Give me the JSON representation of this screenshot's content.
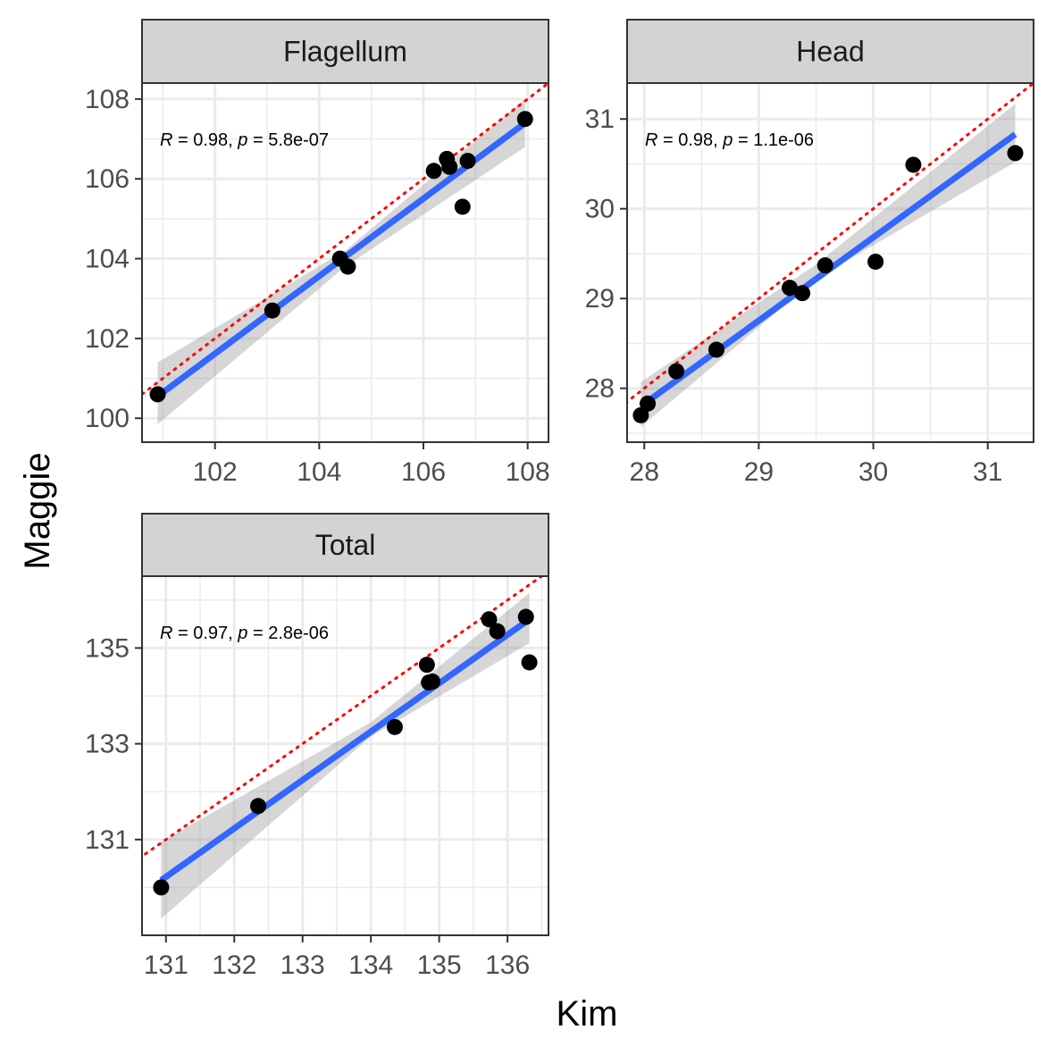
{
  "figure": {
    "xlabel": "Kim",
    "ylabel": "Maggie"
  },
  "colors": {
    "points": "#000000",
    "fit_line": "#3366FF",
    "ci_band": "#999999",
    "identity_line": "#FF0000",
    "strip_fill": "#D3D3D3",
    "grid": "#EBEBEB"
  },
  "chart_data": [
    {
      "type": "scatter",
      "title": "Flagellum",
      "xlabel": "Kim",
      "ylabel": "Maggie",
      "xlim": [
        100.6,
        108.4
      ],
      "ylim": [
        99.4,
        108.4
      ],
      "xticks": [
        102,
        104,
        106,
        108
      ],
      "yticks": [
        100,
        102,
        104,
        106,
        108
      ],
      "grid": true,
      "annotation": {
        "r_label": "R",
        "r_value": " = 0.98, ",
        "p_label": "p",
        "p_value": " = 5.8e-07"
      },
      "points": [
        {
          "x": 100.9,
          "y": 100.6
        },
        {
          "x": 103.1,
          "y": 102.7
        },
        {
          "x": 104.4,
          "y": 104.0
        },
        {
          "x": 104.55,
          "y": 103.8
        },
        {
          "x": 106.2,
          "y": 106.2
        },
        {
          "x": 106.45,
          "y": 106.5
        },
        {
          "x": 106.5,
          "y": 106.3
        },
        {
          "x": 106.75,
          "y": 105.3
        },
        {
          "x": 106.85,
          "y": 106.45
        },
        {
          "x": 107.95,
          "y": 107.5
        }
      ],
      "fit": {
        "x": [
          100.9,
          107.95
        ],
        "y": [
          100.55,
          107.4
        ]
      },
      "ci": {
        "x": [
          100.9,
          104.5,
          107.95
        ],
        "lower": [
          99.85,
          103.8,
          106.8
        ],
        "upper": [
          101.4,
          104.2,
          108.0
        ]
      },
      "identity_line": true
    },
    {
      "type": "scatter",
      "title": "Head",
      "xlabel": "Kim",
      "ylabel": "Maggie",
      "xlim": [
        27.85,
        31.4
      ],
      "ylim": [
        27.4,
        31.4
      ],
      "xticks": [
        28,
        29,
        30,
        31
      ],
      "yticks": [
        28,
        29,
        30,
        31
      ],
      "grid": true,
      "annotation": {
        "r_label": "R",
        "r_value": " = 0.98, ",
        "p_label": "p",
        "p_value": " = 1.1e-06"
      },
      "points": [
        {
          "x": 27.97,
          "y": 27.7
        },
        {
          "x": 28.03,
          "y": 27.83
        },
        {
          "x": 28.28,
          "y": 28.19
        },
        {
          "x": 28.63,
          "y": 28.43
        },
        {
          "x": 29.27,
          "y": 29.12
        },
        {
          "x": 29.38,
          "y": 29.06
        },
        {
          "x": 29.58,
          "y": 29.37
        },
        {
          "x": 30.02,
          "y": 29.41
        },
        {
          "x": 30.35,
          "y": 30.49
        },
        {
          "x": 31.24,
          "y": 30.62
        }
      ],
      "fit": {
        "x": [
          27.97,
          31.24
        ],
        "y": [
          27.8,
          30.83
        ]
      },
      "ci": {
        "x": [
          27.97,
          29.5,
          31.24
        ],
        "lower": [
          27.57,
          29.22,
          30.52
        ],
        "upper": [
          28.07,
          29.38,
          31.17
        ]
      },
      "identity_line": true
    },
    {
      "type": "scatter",
      "title": "Total",
      "xlabel": "Kim",
      "ylabel": "Maggie",
      "xlim": [
        130.65,
        136.6
      ],
      "ylim": [
        129.0,
        136.5
      ],
      "xticks": [
        131,
        132,
        133,
        134,
        135,
        136
      ],
      "yticks": [
        131,
        133,
        135
      ],
      "grid": true,
      "annotation": {
        "r_label": "R",
        "r_value": " = 0.97, ",
        "p_label": "p",
        "p_value": " = 2.8e-06"
      },
      "points": [
        {
          "x": 130.93,
          "y": 130.0
        },
        {
          "x": 132.35,
          "y": 131.7
        },
        {
          "x": 134.35,
          "y": 133.35
        },
        {
          "x": 134.82,
          "y": 134.65
        },
        {
          "x": 134.85,
          "y": 134.28
        },
        {
          "x": 134.9,
          "y": 134.3
        },
        {
          "x": 135.73,
          "y": 135.6
        },
        {
          "x": 135.85,
          "y": 135.35
        },
        {
          "x": 136.27,
          "y": 135.65
        },
        {
          "x": 136.32,
          "y": 134.7
        }
      ],
      "fit": {
        "x": [
          130.93,
          136.32
        ],
        "y": [
          130.15,
          135.6
        ]
      },
      "ci": {
        "x": [
          130.93,
          134.0,
          136.32
        ],
        "lower": [
          129.35,
          133.15,
          135.1
        ],
        "upper": [
          130.95,
          133.45,
          136.15
        ]
      },
      "identity_line": true
    }
  ]
}
